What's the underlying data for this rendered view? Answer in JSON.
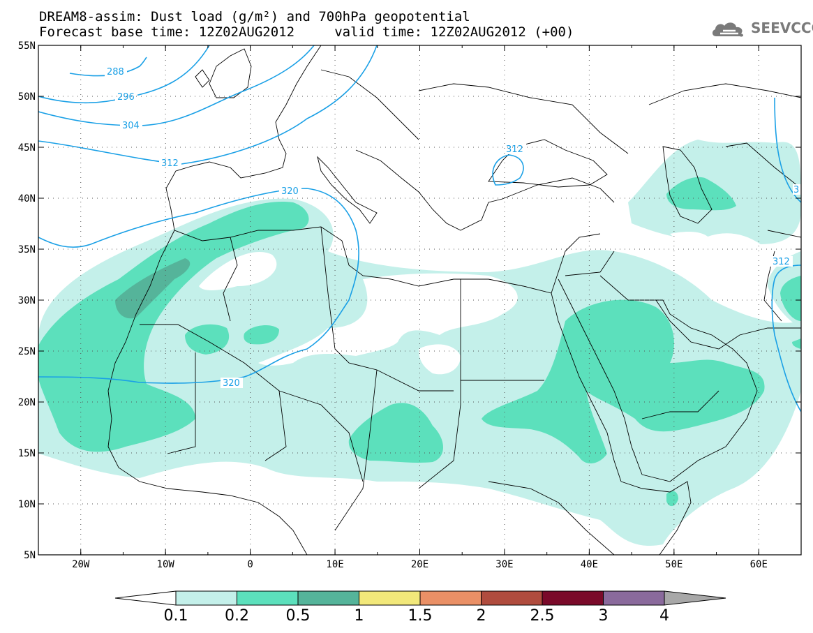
{
  "header": {
    "title_line_1": "DREAM8-assim: Dust load (g/m²) and 700hPa geopotential",
    "title_line_2": "Forecast base time: 12Z02AUG2012     valid time: 12Z02AUG2012 (+00)"
  },
  "logo": {
    "text": "SEEVCCC",
    "icon": "cloud-icon"
  },
  "colors": {
    "c01": "#c4f0ea",
    "c02": "#5ce0bc",
    "c05": "#55b49a",
    "c1": "#f2e87a",
    "c15": "#ea9066",
    "c2": "#b04c3e",
    "c25": "#7a0a2a",
    "c3": "#8a6a9c",
    "c4": "#a8a8a8",
    "contour": "#1aa0e6",
    "border": "#000000"
  },
  "map": {
    "lon_range": [
      -25,
      65
    ],
    "lat_range": [
      5,
      55
    ],
    "lon_ticks": [
      "20W",
      "10W",
      "0",
      "10E",
      "20E",
      "30E",
      "40E",
      "50E",
      "60E"
    ],
    "lat_ticks": [
      "55N",
      "50N",
      "45N",
      "40N",
      "35N",
      "30N",
      "25N",
      "20N",
      "15N",
      "10N",
      "5N"
    ],
    "contour_labels": [
      "288",
      "296",
      "304",
      "312",
      "320",
      "312",
      "320",
      "312",
      "3"
    ]
  },
  "colorbar": {
    "labels": [
      "0.1",
      "0.2",
      "0.5",
      "1",
      "1.5",
      "2",
      "2.5",
      "3",
      "4"
    ]
  }
}
